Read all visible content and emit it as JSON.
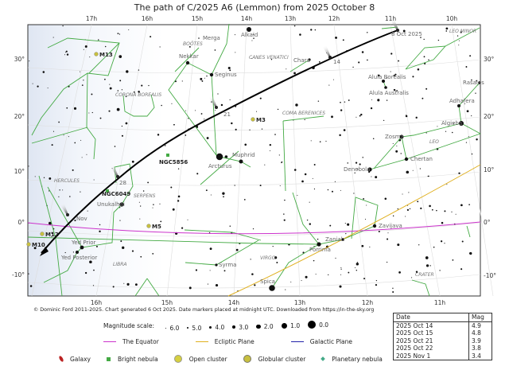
{
  "title": "The path of C/2025 A6 (Lemmon) from 2025 October 8",
  "ra_top": [
    "17h",
    "16h",
    "15h",
    "14h",
    "13h",
    "12h",
    "11h",
    "10h"
  ],
  "ra_bottom": [
    "16h",
    "15h",
    "14h",
    "13h",
    "12h",
    "11h"
  ],
  "dec_left": [
    "30°",
    "20°",
    "10°",
    "0°",
    "-10°"
  ],
  "dec_right": [
    "30°",
    "20°",
    "10°",
    "0°",
    "-10°"
  ],
  "comet_markers": [
    "8 Oct 2025",
    "14",
    "21",
    "28",
    "Nov"
  ],
  "stars": [
    "Alkaid",
    "Merga",
    "Nekkar",
    "Seginus",
    "Chara",
    "Alula Borealis",
    "Alula Australis",
    "Rasalas",
    "Adhafera",
    "Algieba",
    "Zosma",
    "Chertan",
    "Muphrid",
    "Arcturus",
    "Denebola",
    "Unukalhai",
    "Yed Prior",
    "Yed Posterior",
    "Zavijava",
    "Zaniah",
    "Porrima",
    "Syrma",
    "Spica"
  ],
  "constellations": [
    "BOÖTES",
    "CANES VENATICI",
    "LEO MINOR",
    "CORONA BOREALIS",
    "COMA BERENICES",
    "LEO",
    "HERCULES",
    "SERPENS",
    "LIBRA",
    "VIRGO",
    "CRATER"
  ],
  "deep_sky": [
    "M13",
    "M3",
    "NGC5856",
    "NGC6049",
    "M5",
    "M12",
    "M10"
  ],
  "colors": {
    "equator": "#cc33cc",
    "ecliptic": "#e0b020",
    "galactic": "#2222aa",
    "constellation_lines": "#44aa44",
    "comet_path": "#000000"
  },
  "footer": {
    "copyright": "© Dominic Ford 2011-2025. Chart generated 6 Oct 2025. Date markers placed at midnight UTC. Downloaded from https://in-the-sky.org",
    "mag_label": "Magnitude scale:",
    "mag_scale": [
      "6.0",
      "5.0",
      "4.0",
      "3.0",
      "2.0",
      "1.0",
      "0.0"
    ],
    "lines": [
      "The Equator",
      "Ecliptic Plane",
      "Galactic Plane"
    ],
    "objects": [
      {
        "label": "Galaxy",
        "icon": "galaxy-icon"
      },
      {
        "label": "Bright nebula",
        "icon": "bright-nebula-icon"
      },
      {
        "label": "Open cluster",
        "icon": "open-cluster-icon"
      },
      {
        "label": "Globular cluster",
        "icon": "globular-cluster-icon"
      },
      {
        "label": "Planetary nebula",
        "icon": "planetary-nebula-icon"
      }
    ]
  },
  "mag_table": {
    "headers": [
      "Date",
      "Mag"
    ],
    "rows": [
      [
        "2025 Oct 14",
        "4.9"
      ],
      [
        "2025 Oct 15",
        "4.8"
      ],
      [
        "2025 Oct 21",
        "3.9"
      ],
      [
        "2025 Oct 22",
        "3.8"
      ],
      [
        "2025 Nov 1",
        "3.4"
      ]
    ]
  }
}
